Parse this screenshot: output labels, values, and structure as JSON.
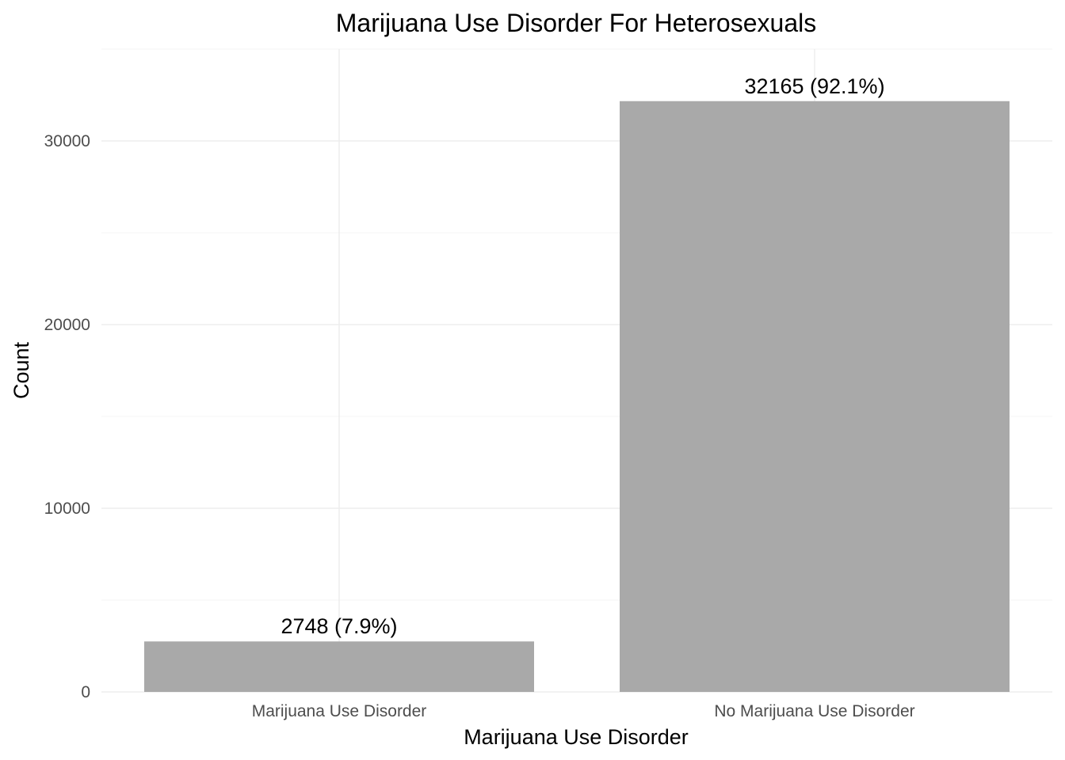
{
  "chart_data": {
    "type": "bar",
    "title": "Marijuana Use Disorder For Heterosexuals",
    "xlabel": "Marijuana Use Disorder",
    "ylabel": "Count",
    "categories": [
      "Marijuana Use Disorder",
      "No Marijuana Use Disorder"
    ],
    "values": [
      2748,
      32165
    ],
    "data_labels": [
      "2748 (7.9%)",
      "32165 (92.1%)"
    ],
    "yticks": [
      0,
      10000,
      20000,
      30000
    ],
    "ytick_labels": [
      "0",
      "10000",
      "20000",
      "30000"
    ],
    "ylim": [
      0,
      35000
    ],
    "bar_color": "#a9a9a9",
    "grid": true,
    "legend": "none"
  }
}
